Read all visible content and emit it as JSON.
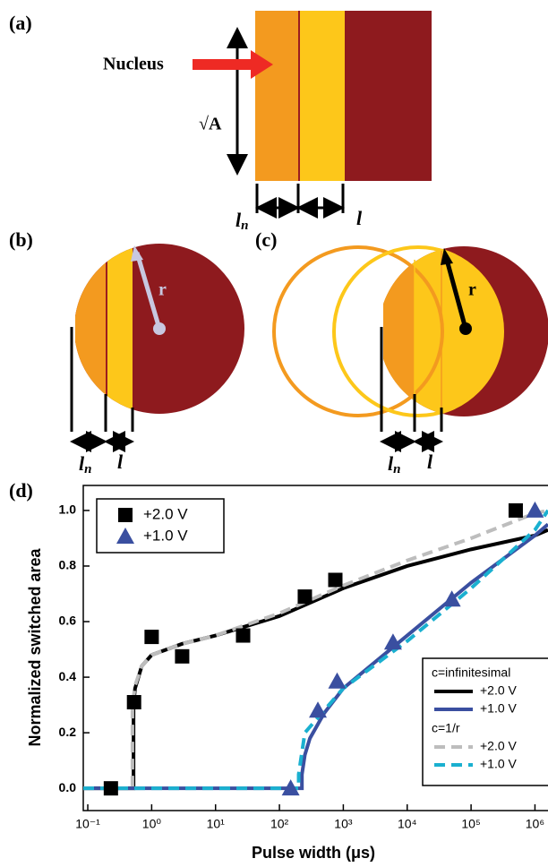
{
  "panels": {
    "a": {
      "label": "(a)",
      "nucleus": "Nucleus",
      "sqrt_a": "√A",
      "ln": "l",
      "ln_sub": "n",
      "l": "l"
    },
    "b": {
      "label": "(b)",
      "r": "r",
      "ln": "l",
      "ln_sub": "n",
      "l": "l"
    },
    "c": {
      "label": "(c)",
      "r": "r",
      "ln": "l",
      "ln_sub": "n",
      "l": "l"
    },
    "d": {
      "label": "(d)"
    }
  },
  "chart_data": {
    "type": "scatter",
    "xlabel": "Pulse width (μs)",
    "ylabel": "Normalized switched area",
    "xscale": "log",
    "xlim": [
      0.085,
      1600000
    ],
    "ylim": [
      -0.08,
      1.09
    ],
    "xticks": [
      {
        "value": 0.1,
        "label": "10⁻¹"
      },
      {
        "value": 1,
        "label": "10⁰"
      },
      {
        "value": 10,
        "label": "10¹"
      },
      {
        "value": 100,
        "label": "10²"
      },
      {
        "value": 1000,
        "label": "10³"
      },
      {
        "value": 10000,
        "label": "10⁴"
      },
      {
        "value": 100000,
        "label": "10⁵"
      },
      {
        "value": 1000000,
        "label": "10⁶"
      }
    ],
    "yticks": [
      {
        "value": 0,
        "label": "0.0"
      },
      0.2,
      0.4,
      0.6,
      0.8,
      {
        "value": 1,
        "label": "1.0"
      }
    ],
    "series": [
      {
        "name": "+2.0 V",
        "color": "#000000",
        "type": "scatter",
        "marker": "square",
        "x": [
          0.23,
          0.53,
          1,
          3,
          27,
          250,
          750,
          500000
        ],
        "values": [
          0,
          0.31,
          0.545,
          0.475,
          0.55,
          0.69,
          0.75,
          1.0
        ]
      },
      {
        "name": "+1.0 V",
        "color": "#3a4fa0",
        "type": "scatter",
        "marker": "triangle",
        "x": [
          150,
          400,
          800,
          6000,
          50000,
          1000000
        ],
        "values": [
          0,
          0.28,
          0.385,
          0.525,
          0.68,
          1.0
        ]
      },
      {
        "name": "+2.0 V",
        "color": "#000000",
        "type": "line",
        "dash": false,
        "x": [
          0.085,
          0.52,
          0.52,
          0.55,
          0.7,
          1,
          3,
          10,
          100,
          1000,
          10000,
          100000,
          1000000,
          1600000
        ],
        "values": [
          0,
          0,
          0.3,
          0.36,
          0.44,
          0.48,
          0.52,
          0.55,
          0.62,
          0.72,
          0.8,
          0.86,
          0.91,
          0.93
        ]
      },
      {
        "name": "+1.0 V",
        "color": "#3a4fa0",
        "type": "line",
        "dash": false,
        "x": [
          0.085,
          225,
          225,
          250,
          300,
          500,
          1000,
          10000,
          100000,
          1000000,
          1600000
        ],
        "values": [
          0,
          0,
          0.05,
          0.12,
          0.18,
          0.27,
          0.36,
          0.55,
          0.74,
          0.91,
          0.95
        ]
      },
      {
        "name": "+2.0 V",
        "color": "#bdbdbd",
        "type": "line",
        "dash": true,
        "x": [
          0.085,
          0.5,
          0.5,
          0.55,
          0.7,
          1,
          3,
          10,
          100,
          1000,
          10000,
          100000,
          1000000,
          1600000
        ],
        "values": [
          0,
          0,
          0.3,
          0.37,
          0.44,
          0.48,
          0.52,
          0.55,
          0.63,
          0.73,
          0.82,
          0.9,
          0.99,
          1.0
        ]
      },
      {
        "name": "+1.0 V",
        "color": "#1ab0d0",
        "type": "line",
        "dash": true,
        "x": [
          0.085,
          200,
          200,
          250,
          500,
          1000,
          10000,
          100000,
          1000000,
          1600000
        ],
        "values": [
          0,
          0,
          0.05,
          0.2,
          0.28,
          0.36,
          0.53,
          0.72,
          0.93,
          1.0
        ]
      }
    ],
    "legends": [
      {
        "series": [
          0,
          1
        ]
      },
      {
        "groups": [
          {
            "title": "c=infinitesimal",
            "series": [
              2,
              3
            ]
          },
          {
            "title": "c=1/r",
            "series": [
              4,
              5
            ]
          }
        ]
      }
    ]
  }
}
